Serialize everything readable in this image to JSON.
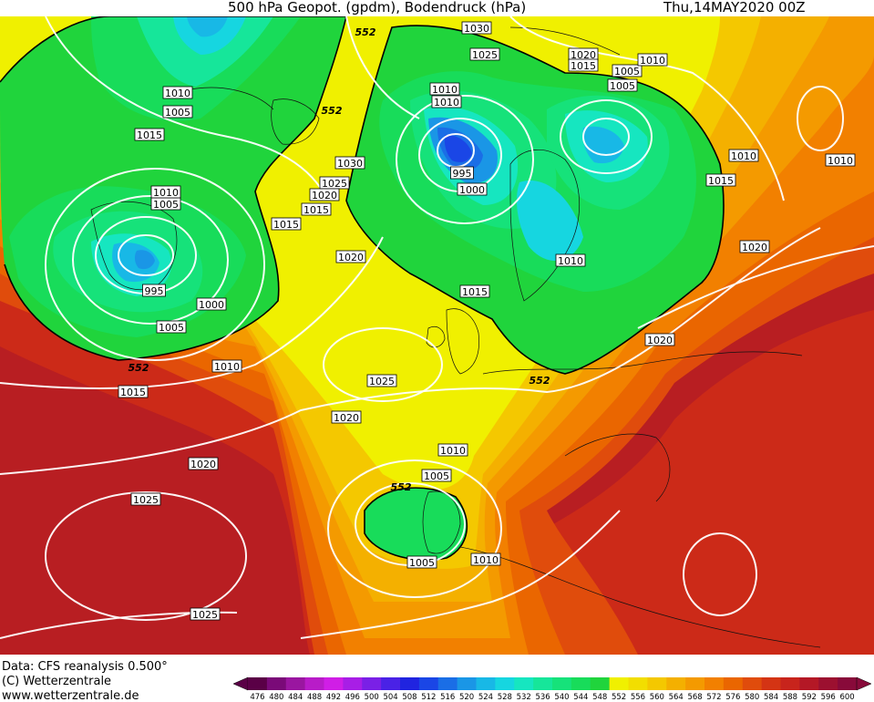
{
  "header": {
    "title": "500 hPa Geopot. (gpdm), Bodendruck (hPa)",
    "datetime": "Thu,14MAY2020 00Z"
  },
  "footer": {
    "data_source": "Data: CFS reanalysis 0.500°",
    "copyright": "(C) Wetterzentrale",
    "website": "www.wetterzentrale.de"
  },
  "colorbar": {
    "ticks": [
      "476",
      "480",
      "484",
      "488",
      "492",
      "496",
      "500",
      "504",
      "508",
      "512",
      "516",
      "520",
      "524",
      "528",
      "532",
      "536",
      "540",
      "544",
      "548",
      "552",
      "556",
      "560",
      "564",
      "568",
      "572",
      "576",
      "580",
      "584",
      "588",
      "592",
      "596",
      "600"
    ],
    "colors": [
      "#5a0046",
      "#7a0a78",
      "#9a16a0",
      "#b81cc8",
      "#d01ee6",
      "#a81ee6",
      "#7a20e6",
      "#4a22e6",
      "#2024e0",
      "#1a46e6",
      "#1a6ee6",
      "#1a96e6",
      "#18b8e6",
      "#16d6e0",
      "#16e6c0",
      "#16e69a",
      "#16e27a",
      "#18dc5a",
      "#20d43c",
      "#f0f000",
      "#f2de00",
      "#f4c800",
      "#f4b000",
      "#f49a00",
      "#f28000",
      "#ea6600",
      "#e04c0c",
      "#d43414",
      "#c8241c",
      "#b41826",
      "#9c1030",
      "#880a3a"
    ]
  },
  "map": {
    "contour_552_label": "552",
    "pressure_labels": [
      {
        "id": "p1030-a",
        "text": "1030"
      },
      {
        "id": "p1025-a",
        "text": "1025"
      },
      {
        "id": "p1020-a",
        "text": "1020"
      },
      {
        "id": "p1015-a",
        "text": "1015"
      },
      {
        "id": "p1005-a",
        "text": "1005"
      },
      {
        "id": "p1010-b",
        "text": "1010"
      },
      {
        "id": "p1010-c",
        "text": "1010"
      },
      {
        "id": "p1005-b",
        "text": "1005"
      },
      {
        "id": "p1010-d",
        "text": "1010"
      },
      {
        "id": "p1015-b",
        "text": "1015"
      },
      {
        "id": "p1010-e",
        "text": "1010"
      },
      {
        "id": "p1005-c",
        "text": "1005"
      },
      {
        "id": "p995-a",
        "text": "995"
      },
      {
        "id": "p1000-a",
        "text": "1000"
      },
      {
        "id": "p1005-d",
        "text": "1005"
      },
      {
        "id": "p1010-f",
        "text": "1010"
      },
      {
        "id": "p1015-c",
        "text": "1015"
      },
      {
        "id": "p1030-b",
        "text": "1030"
      },
      {
        "id": "p1025-b",
        "text": "1025"
      },
      {
        "id": "p1020-b",
        "text": "1020"
      },
      {
        "id": "p1015-d",
        "text": "1015"
      },
      {
        "id": "p1010-g",
        "text": "1010"
      },
      {
        "id": "p1005-e",
        "text": "1005"
      },
      {
        "id": "p995-b",
        "text": "995"
      },
      {
        "id": "p1000-b",
        "text": "1000"
      },
      {
        "id": "p1020-c",
        "text": "1020"
      },
      {
        "id": "p1015-e",
        "text": "1015"
      },
      {
        "id": "p1010-h",
        "text": "1010"
      },
      {
        "id": "p1015-f",
        "text": "1015"
      },
      {
        "id": "p1020-d",
        "text": "1020"
      },
      {
        "id": "p1010-i",
        "text": "1010"
      },
      {
        "id": "p1020-e",
        "text": "1020"
      },
      {
        "id": "p1025-c",
        "text": "1025"
      },
      {
        "id": "p1020-f",
        "text": "1020"
      },
      {
        "id": "p1010-j",
        "text": "1010"
      },
      {
        "id": "p1005-f",
        "text": "1005"
      },
      {
        "id": "p1005-g",
        "text": "1005"
      },
      {
        "id": "p1010-k",
        "text": "1010"
      },
      {
        "id": "p1015-g",
        "text": "1015"
      },
      {
        "id": "p1025-d",
        "text": "1025"
      },
      {
        "id": "p1025-e",
        "text": "1025"
      },
      {
        "id": "p1020-g",
        "text": "1020"
      },
      {
        "id": "p1010-l",
        "text": "1010"
      }
    ]
  }
}
